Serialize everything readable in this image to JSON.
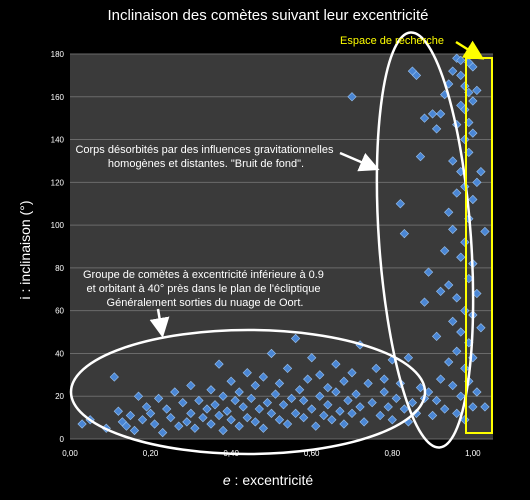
{
  "chart_data": {
    "type": "scatter",
    "title": "Inclinaison des comètes suivant leur excentricité",
    "xlabel_var": "e",
    "xlabel_rest": " : excentricité",
    "ylabel": "i : inclinaison (°)",
    "xlim": [
      0,
      1.05
    ],
    "ylim": [
      0,
      180
    ],
    "xticks": [
      0,
      0.2,
      0.4,
      0.6,
      0.8,
      1.0
    ],
    "xtick_labels": [
      "0,00",
      "0,20",
      "0,40",
      "0,60",
      "0,80",
      "1,00"
    ],
    "yticks": [
      0,
      20,
      40,
      60,
      80,
      100,
      120,
      140,
      160,
      180
    ],
    "ytick_labels": [
      "0",
      "20",
      "40",
      "60",
      "80",
      "100",
      "120",
      "140",
      "160",
      "180"
    ],
    "grid": true,
    "series": [
      {
        "color": "#4a86d4",
        "points": [
          [
            0.03,
            7
          ],
          [
            0.05,
            9
          ],
          [
            0.09,
            5
          ],
          [
            0.11,
            29
          ],
          [
            0.12,
            13
          ],
          [
            0.13,
            8
          ],
          [
            0.14,
            6
          ],
          [
            0.15,
            11
          ],
          [
            0.16,
            4
          ],
          [
            0.17,
            20
          ],
          [
            0.18,
            9
          ],
          [
            0.19,
            15
          ],
          [
            0.2,
            12
          ],
          [
            0.21,
            7
          ],
          [
            0.22,
            19
          ],
          [
            0.23,
            3
          ],
          [
            0.24,
            14
          ],
          [
            0.25,
            10
          ],
          [
            0.26,
            22
          ],
          [
            0.27,
            6
          ],
          [
            0.28,
            17
          ],
          [
            0.29,
            8
          ],
          [
            0.3,
            25
          ],
          [
            0.3,
            12
          ],
          [
            0.31,
            5
          ],
          [
            0.32,
            18
          ],
          [
            0.33,
            10
          ],
          [
            0.34,
            14
          ],
          [
            0.35,
            23
          ],
          [
            0.35,
            7
          ],
          [
            0.36,
            16
          ],
          [
            0.37,
            11
          ],
          [
            0.37,
            35
          ],
          [
            0.38,
            20
          ],
          [
            0.38,
            4
          ],
          [
            0.39,
            13
          ],
          [
            0.4,
            27
          ],
          [
            0.4,
            9
          ],
          [
            0.41,
            18
          ],
          [
            0.42,
            6
          ],
          [
            0.42,
            22
          ],
          [
            0.43,
            15
          ],
          [
            0.44,
            31
          ],
          [
            0.44,
            10
          ],
          [
            0.45,
            19
          ],
          [
            0.46,
            8
          ],
          [
            0.46,
            25
          ],
          [
            0.47,
            14
          ],
          [
            0.48,
            29
          ],
          [
            0.48,
            5
          ],
          [
            0.49,
            17
          ],
          [
            0.5,
            12
          ],
          [
            0.5,
            40
          ],
          [
            0.51,
            21
          ],
          [
            0.52,
            9
          ],
          [
            0.52,
            26
          ],
          [
            0.53,
            16
          ],
          [
            0.54,
            33
          ],
          [
            0.54,
            7
          ],
          [
            0.55,
            19
          ],
          [
            0.56,
            12
          ],
          [
            0.56,
            47
          ],
          [
            0.57,
            23
          ],
          [
            0.58,
            10
          ],
          [
            0.58,
            18
          ],
          [
            0.59,
            28
          ],
          [
            0.6,
            14
          ],
          [
            0.6,
            38
          ],
          [
            0.61,
            6
          ],
          [
            0.62,
            20
          ],
          [
            0.62,
            30
          ],
          [
            0.63,
            11
          ],
          [
            0.64,
            24
          ],
          [
            0.64,
            16
          ],
          [
            0.65,
            9
          ],
          [
            0.66,
            22
          ],
          [
            0.66,
            35
          ],
          [
            0.67,
            13
          ],
          [
            0.68,
            27
          ],
          [
            0.68,
            7
          ],
          [
            0.69,
            18
          ],
          [
            0.7,
            31
          ],
          [
            0.7,
            12
          ],
          [
            0.7,
            160
          ],
          [
            0.71,
            21
          ],
          [
            0.72,
            15
          ],
          [
            0.72,
            44
          ],
          [
            0.73,
            8
          ],
          [
            0.74,
            26
          ],
          [
            0.75,
            17
          ],
          [
            0.76,
            33
          ],
          [
            0.77,
            11
          ],
          [
            0.78,
            22
          ],
          [
            0.78,
            28
          ],
          [
            0.79,
            15
          ],
          [
            0.8,
            9
          ],
          [
            0.8,
            37
          ],
          [
            0.81,
            19
          ],
          [
            0.82,
            26
          ],
          [
            0.82,
            110
          ],
          [
            0.83,
            96
          ],
          [
            0.83,
            14
          ],
          [
            0.84,
            8
          ],
          [
            0.84,
            38
          ],
          [
            0.85,
            17
          ],
          [
            0.85,
            172
          ],
          [
            0.86,
            12
          ],
          [
            0.86,
            170
          ],
          [
            0.87,
            24
          ],
          [
            0.87,
            132
          ],
          [
            0.88,
            19
          ],
          [
            0.88,
            64
          ],
          [
            0.88,
            150
          ],
          [
            0.89,
            22
          ],
          [
            0.89,
            78
          ],
          [
            0.9,
            11
          ],
          [
            0.9,
            152
          ],
          [
            0.91,
            18
          ],
          [
            0.91,
            48
          ],
          [
            0.91,
            145
          ],
          [
            0.92,
            28
          ],
          [
            0.92,
            69
          ],
          [
            0.92,
            152
          ],
          [
            0.93,
            14
          ],
          [
            0.93,
            88
          ],
          [
            0.93,
            161
          ],
          [
            0.94,
            36
          ],
          [
            0.94,
            72
          ],
          [
            0.94,
            106
          ],
          [
            0.94,
            166
          ],
          [
            0.95,
            25
          ],
          [
            0.95,
            55
          ],
          [
            0.95,
            98
          ],
          [
            0.95,
            130
          ],
          [
            0.95,
            172
          ],
          [
            0.96,
            12
          ],
          [
            0.96,
            41
          ],
          [
            0.96,
            66
          ],
          [
            0.96,
            115
          ],
          [
            0.96,
            147
          ],
          [
            0.96,
            178
          ],
          [
            0.97,
            20
          ],
          [
            0.97,
            50
          ],
          [
            0.97,
            85
          ],
          [
            0.97,
            125
          ],
          [
            0.97,
            156
          ],
          [
            0.97,
            170
          ],
          [
            0.98,
            9
          ],
          [
            0.98,
            33
          ],
          [
            0.98,
            60
          ],
          [
            0.98,
            92
          ],
          [
            0.98,
            118
          ],
          [
            0.98,
            140
          ],
          [
            0.98,
            165
          ],
          [
            0.99,
            27
          ],
          [
            0.99,
            45
          ],
          [
            0.99,
            75
          ],
          [
            0.99,
            103
          ],
          [
            0.99,
            134
          ],
          [
            0.99,
            162
          ],
          [
            1.0,
            15
          ],
          [
            1.0,
            38
          ],
          [
            1.0,
            58
          ],
          [
            1.0,
            82
          ],
          [
            1.0,
            112
          ],
          [
            1.0,
            143
          ],
          [
            1.0,
            174
          ],
          [
            1.01,
            22
          ],
          [
            1.01,
            68
          ],
          [
            1.01,
            120
          ],
          [
            1.01,
            163
          ],
          [
            1.02,
            52
          ],
          [
            1.02,
            125
          ],
          [
            1.03,
            97
          ],
          [
            1.03,
            15
          ],
          [
            0.97,
            177
          ],
          [
            0.98,
            154
          ],
          [
            0.99,
            148
          ],
          [
            1.0,
            158
          ],
          [
            0.99,
            176
          ]
        ]
      }
    ],
    "annotations": {
      "background_lines": [
        "Corps désorbités par des influences gravitationnelles",
        "homogènes et distantes. \"Bruit de fond\"."
      ],
      "group_lines": [
        "Groupe de comètes à excentricité inférieure à 0.9",
        "et orbitant à 40° près dans le plan de l'écliptique",
        "Généralement sorties du nuage de Oort."
      ],
      "search_label": "Espace de recherche",
      "search_color": "#ffff00"
    }
  }
}
